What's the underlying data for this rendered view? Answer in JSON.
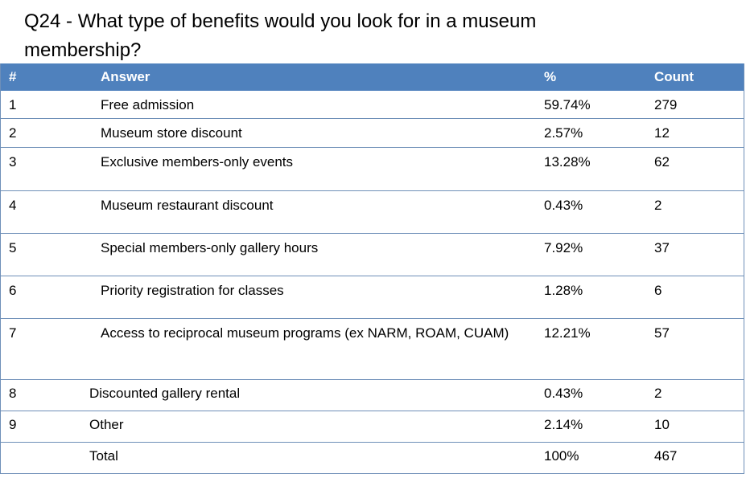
{
  "title": "Q24 - What type of benefits would you look for in a museum membership?",
  "table": {
    "header": [
      "#",
      "Answer",
      "%",
      "Count"
    ],
    "rows": [
      [
        "1",
        "Free admission",
        "59.74%",
        "279"
      ],
      [
        "2",
        "Museum store discount",
        "2.57%",
        "12"
      ],
      [
        "3",
        "Exclusive members-only events",
        "13.28%",
        "62"
      ],
      [
        "4",
        "Museum restaurant discount",
        "0.43%",
        "2"
      ],
      [
        "5",
        "Special members-only gallery hours",
        "7.92%",
        "37"
      ],
      [
        "6",
        "Priority registration for classes",
        "1.28%",
        "6"
      ],
      [
        "7",
        "Access to reciprocal museum programs (ex NARM, ROAM, CUAM)",
        "12.21%",
        "57"
      ],
      [
        "8",
        "Discounted gallery rental",
        "0.43%",
        "2"
      ],
      [
        "9",
        "Other",
        "2.14%",
        "10"
      ]
    ],
    "total": {
      "answer": "Total",
      "percent": "100%",
      "count": "467"
    }
  }
}
